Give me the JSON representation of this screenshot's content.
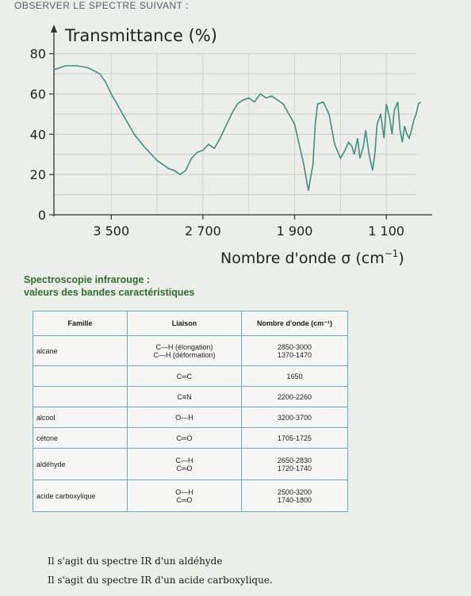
{
  "header": "OBSERVER LE SPECTRE SUIVANT :",
  "chart_data": {
    "type": "line",
    "ylabel": "Transmittance (%)",
    "xlabel_main": "Nombre d'onde σ (cm",
    "xlabel_exp": "−1",
    "xlabel_close": ")",
    "y_ticks": [
      0,
      20,
      40,
      60,
      80
    ],
    "x_ticks": [
      3500,
      2700,
      1900,
      1100
    ],
    "x_tick_labels": [
      "3 500",
      "2 700",
      "1 900",
      "1 100"
    ],
    "x_range": [
      4000,
      700
    ],
    "y_range": [
      0,
      85
    ],
    "grid": true,
    "line_color": "#3f8f82",
    "series": [
      {
        "x": [
          4000,
          3900,
          3800,
          3700,
          3600,
          3550,
          3500,
          3400,
          3300,
          3200,
          3100,
          3000,
          2950,
          2900,
          2850,
          2800,
          2750,
          2700,
          2650,
          2600,
          2550,
          2500,
          2450,
          2400,
          2350,
          2300,
          2250,
          2200,
          2150,
          2100,
          2050,
          2000,
          1950,
          1900,
          1860,
          1820,
          1780,
          1740,
          1720,
          1700,
          1650,
          1600,
          1550,
          1500,
          1460,
          1430,
          1400,
          1380,
          1350,
          1330,
          1300,
          1280,
          1250,
          1220,
          1200,
          1180,
          1150,
          1120,
          1100,
          1070,
          1050,
          1030,
          1000,
          980,
          960,
          940,
          920,
          900,
          880,
          860,
          840,
          820,
          800
        ],
        "y": [
          72,
          74,
          74,
          73,
          70,
          66,
          60,
          50,
          40,
          33,
          27,
          23,
          22,
          20,
          22,
          28,
          31,
          32,
          35,
          33,
          38,
          44,
          50,
          55,
          57,
          58,
          56,
          60,
          58,
          59,
          57,
          55,
          50,
          45,
          35,
          25,
          12,
          25,
          45,
          55,
          56,
          50,
          35,
          28,
          32,
          36,
          34,
          30,
          38,
          28,
          34,
          42,
          30,
          22,
          30,
          45,
          50,
          38,
          55,
          48,
          40,
          52,
          56,
          42,
          36,
          44,
          40,
          38,
          42,
          47,
          50,
          55,
          56
        ]
      }
    ]
  },
  "spectro": {
    "title": "Spectroscopie infrarouge :",
    "subtitle": "valeurs des bandes caractéristiques"
  },
  "table": {
    "headers": {
      "famille": "Famille",
      "liaison": "Liaison",
      "nombre": "Nombre d'onde (cm⁻¹)"
    },
    "rows": [
      {
        "famille": "alcane",
        "liaison1": "C—H (élongation)",
        "liaison2": "C—H (déformation)",
        "nombre1": "2850-3000",
        "nombre2": "1370-1470"
      },
      {
        "famille": "",
        "liaison1": "C═C",
        "nombre1": "1650"
      },
      {
        "famille": "",
        "liaison1": "C≡N",
        "nombre1": "2200-2260"
      },
      {
        "famille": "alcool",
        "liaison1": "O—H",
        "nombre1": "3200-3700"
      },
      {
        "famille": "cétone",
        "liaison1": "C═O",
        "nombre1": "1705-1725"
      },
      {
        "famille": "aldéhyde",
        "liaison1": "C—H",
        "liaison2": "C═O",
        "nombre1": "2650-2830",
        "nombre2": "1720-1740"
      },
      {
        "famille": "acide carboxylique",
        "liaison1": "O—H",
        "liaison2": "C═O",
        "nombre1": "2500-3200",
        "nombre2": "1740-1800"
      }
    ]
  },
  "answers": [
    "Il s'agit du spectre IR d'un aldéhyde",
    "Il s'agit du spectre IR d'un acide carboxylique."
  ]
}
